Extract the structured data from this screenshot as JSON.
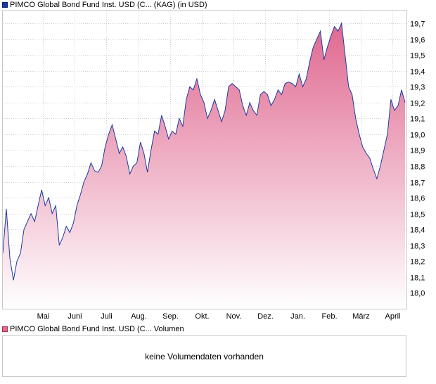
{
  "legend": {
    "price": "PIMCO Global Bond Fund Inst. USD (C...  (KAG)  (in USD)",
    "volume": "PIMCO Global Bond Fund Inst. USD (C...  Volumen"
  },
  "volume": {
    "message": "keine Volumendaten vorhanden"
  },
  "colors": {
    "line": "#1a3aa0",
    "fill_top": "#e06890",
    "fill_bottom": "#ffffff",
    "grid": "#d0d0d0"
  },
  "chart_data": {
    "type": "area",
    "ylim": [
      17.9,
      19.78
    ],
    "y_ticks": [
      "18,0",
      "18,1",
      "18,2",
      "18,3",
      "18,4",
      "18,5",
      "18,6",
      "18,7",
      "18,8",
      "18,9",
      "19,0",
      "19,1",
      "19,2",
      "19,3",
      "19,4",
      "19,5",
      "19,6",
      "19,7"
    ],
    "x_ticks": [
      "Mai",
      "Juni",
      "Juli",
      "Aug.",
      "Sep.",
      "Okt.",
      "Nov.",
      "Dez.",
      "Jan.",
      "Feb.",
      "März",
      "April"
    ],
    "grid": true,
    "series": [
      {
        "values": [
          18.25,
          18.53,
          18.22,
          18.08,
          18.2,
          18.25,
          18.4,
          18.45,
          18.5,
          18.45,
          18.55,
          18.65,
          18.55,
          18.6,
          18.5,
          18.55,
          18.3,
          18.35,
          18.42,
          18.38,
          18.44,
          18.55,
          18.62,
          18.7,
          18.75,
          18.82,
          18.77,
          18.76,
          18.8,
          18.92,
          19.0,
          19.06,
          18.97,
          18.88,
          18.92,
          18.86,
          18.75,
          18.8,
          18.82,
          18.95,
          18.88,
          18.76,
          18.9,
          19.02,
          19.0,
          19.12,
          19.05,
          18.97,
          19.02,
          19.0,
          19.1,
          19.05,
          19.22,
          19.3,
          19.28,
          19.35,
          19.25,
          19.2,
          19.1,
          19.15,
          19.22,
          19.15,
          19.08,
          19.15,
          19.3,
          19.32,
          19.3,
          19.28,
          19.18,
          19.12,
          19.2,
          19.15,
          19.12,
          19.25,
          19.27,
          19.25,
          19.18,
          19.22,
          19.28,
          19.25,
          19.32,
          19.33,
          19.32,
          19.3,
          19.38,
          19.3,
          19.35,
          19.46,
          19.55,
          19.6,
          19.65,
          19.47,
          19.55,
          19.62,
          19.68,
          19.65,
          19.7,
          19.5,
          19.3,
          19.25,
          19.1,
          19.0,
          18.92,
          18.88,
          18.85,
          18.78,
          18.72,
          18.8,
          18.9,
          19.0,
          19.22,
          19.15,
          19.18,
          19.28,
          19.2
        ]
      }
    ]
  }
}
